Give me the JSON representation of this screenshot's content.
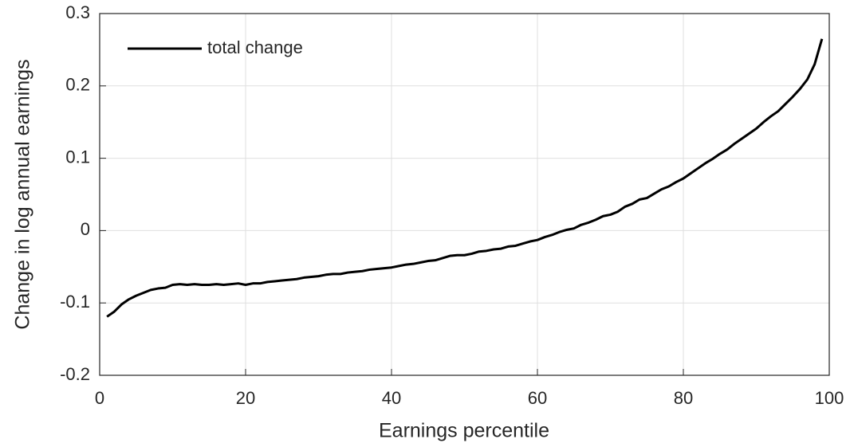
{
  "chart_data": {
    "type": "line",
    "xlabel": "Earnings percentile",
    "ylabel": "Change in log annual earnings",
    "x": [
      1,
      2,
      3,
      4,
      5,
      6,
      7,
      8,
      9,
      10,
      11,
      12,
      13,
      14,
      15,
      16,
      17,
      18,
      19,
      20,
      21,
      22,
      23,
      24,
      25,
      26,
      27,
      28,
      29,
      30,
      31,
      32,
      33,
      34,
      35,
      36,
      37,
      38,
      39,
      40,
      41,
      42,
      43,
      44,
      45,
      46,
      47,
      48,
      49,
      50,
      51,
      52,
      53,
      54,
      55,
      56,
      57,
      58,
      59,
      60,
      61,
      62,
      63,
      64,
      65,
      66,
      67,
      68,
      69,
      70,
      71,
      72,
      73,
      74,
      75,
      76,
      77,
      78,
      79,
      80,
      81,
      82,
      83,
      84,
      85,
      86,
      87,
      88,
      89,
      90,
      91,
      92,
      93,
      94,
      95,
      96,
      97,
      98,
      99
    ],
    "series": [
      {
        "name": "total change",
        "color": "#000000",
        "values": [
          -0.119,
          -0.112,
          -0.102,
          -0.095,
          -0.09,
          -0.086,
          -0.082,
          -0.08,
          -0.079,
          -0.075,
          -0.074,
          -0.075,
          -0.074,
          -0.075,
          -0.075,
          -0.074,
          -0.075,
          -0.074,
          -0.073,
          -0.075,
          -0.073,
          -0.073,
          -0.071,
          -0.07,
          -0.069,
          -0.068,
          -0.067,
          -0.065,
          -0.064,
          -0.063,
          -0.061,
          -0.06,
          -0.06,
          -0.058,
          -0.057,
          -0.056,
          -0.054,
          -0.053,
          -0.052,
          -0.051,
          -0.049,
          -0.047,
          -0.046,
          -0.044,
          -0.042,
          -0.041,
          -0.038,
          -0.035,
          -0.034,
          -0.034,
          -0.032,
          -0.029,
          -0.028,
          -0.026,
          -0.025,
          -0.022,
          -0.021,
          -0.018,
          -0.015,
          -0.013,
          -0.009,
          -0.006,
          -0.002,
          0.001,
          0.003,
          0.008,
          0.011,
          0.015,
          0.02,
          0.022,
          0.026,
          0.033,
          0.037,
          0.043,
          0.045,
          0.051,
          0.057,
          0.061,
          0.067,
          0.072,
          0.079,
          0.086,
          0.093,
          0.099,
          0.106,
          0.112,
          0.12,
          0.127,
          0.134,
          0.141,
          0.15,
          0.158,
          0.165,
          0.175,
          0.185,
          0.196,
          0.209,
          0.23,
          0.265
        ]
      }
    ],
    "xlim": [
      0,
      100
    ],
    "xticks": [
      0,
      20,
      40,
      60,
      80,
      100
    ],
    "ylim": [
      -0.2,
      0.3
    ],
    "yticks": [
      -0.2,
      -0.1,
      0,
      0.1,
      0.2,
      0.3
    ],
    "grid": true,
    "legend": "upper left"
  }
}
